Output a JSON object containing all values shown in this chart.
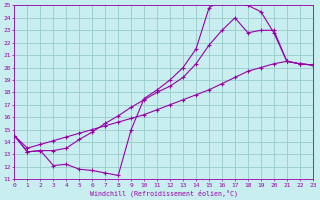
{
  "xlabel": "Windchill (Refroidissement éolien,°C)",
  "background_color": "#c8eef0",
  "grid_color": "#99cccc",
  "line_color": "#9900aa",
  "xmin": 0,
  "xmax": 23,
  "ymin": 11,
  "ymax": 25,
  "line1_x": [
    0,
    1,
    2,
    3,
    4,
    5,
    6,
    7,
    8,
    9,
    10,
    11,
    12,
    13,
    14,
    15,
    16,
    17,
    18,
    19,
    20,
    21,
    22,
    23
  ],
  "line1_y": [
    14.5,
    13.2,
    13.3,
    12.1,
    12.2,
    11.8,
    11.7,
    11.5,
    11.3,
    15.0,
    17.5,
    18.2,
    19.0,
    20.0,
    21.5,
    24.8,
    25.5,
    25.2,
    25.0,
    24.5,
    22.8,
    20.5,
    20.3,
    20.2
  ],
  "line2_x": [
    0,
    1,
    2,
    3,
    4,
    5,
    6,
    7,
    8,
    9,
    10,
    11,
    12,
    13,
    14,
    15,
    16,
    17,
    18,
    19,
    20,
    21,
    22,
    23
  ],
  "line2_y": [
    14.5,
    13.2,
    13.3,
    13.3,
    13.5,
    14.2,
    14.8,
    15.5,
    16.1,
    16.8,
    17.4,
    18.0,
    18.5,
    19.2,
    20.3,
    21.8,
    23.0,
    24.0,
    22.8,
    23.0,
    23.0,
    20.5,
    20.3,
    20.2
  ],
  "line3_x": [
    0,
    1,
    2,
    3,
    4,
    5,
    6,
    7,
    8,
    9,
    10,
    11,
    12,
    13,
    14,
    15,
    16,
    17,
    18,
    19,
    20,
    21,
    22,
    23
  ],
  "line3_y": [
    14.5,
    13.5,
    13.8,
    14.1,
    14.4,
    14.7,
    15.0,
    15.3,
    15.6,
    15.9,
    16.2,
    16.6,
    17.0,
    17.4,
    17.8,
    18.2,
    18.7,
    19.2,
    19.7,
    20.0,
    20.3,
    20.5,
    20.3,
    20.2
  ],
  "xtick_labels": [
    "0",
    "1",
    "2",
    "3",
    "4",
    "5",
    "6",
    "7",
    "8",
    "9",
    "10",
    "11",
    "12",
    "13",
    "14",
    "15",
    "16",
    "17",
    "18",
    "19",
    "20",
    "21",
    "22",
    "23"
  ],
  "ytick_labels": [
    "11",
    "12",
    "13",
    "14",
    "15",
    "16",
    "17",
    "18",
    "19",
    "20",
    "21",
    "22",
    "23",
    "24",
    "25"
  ]
}
